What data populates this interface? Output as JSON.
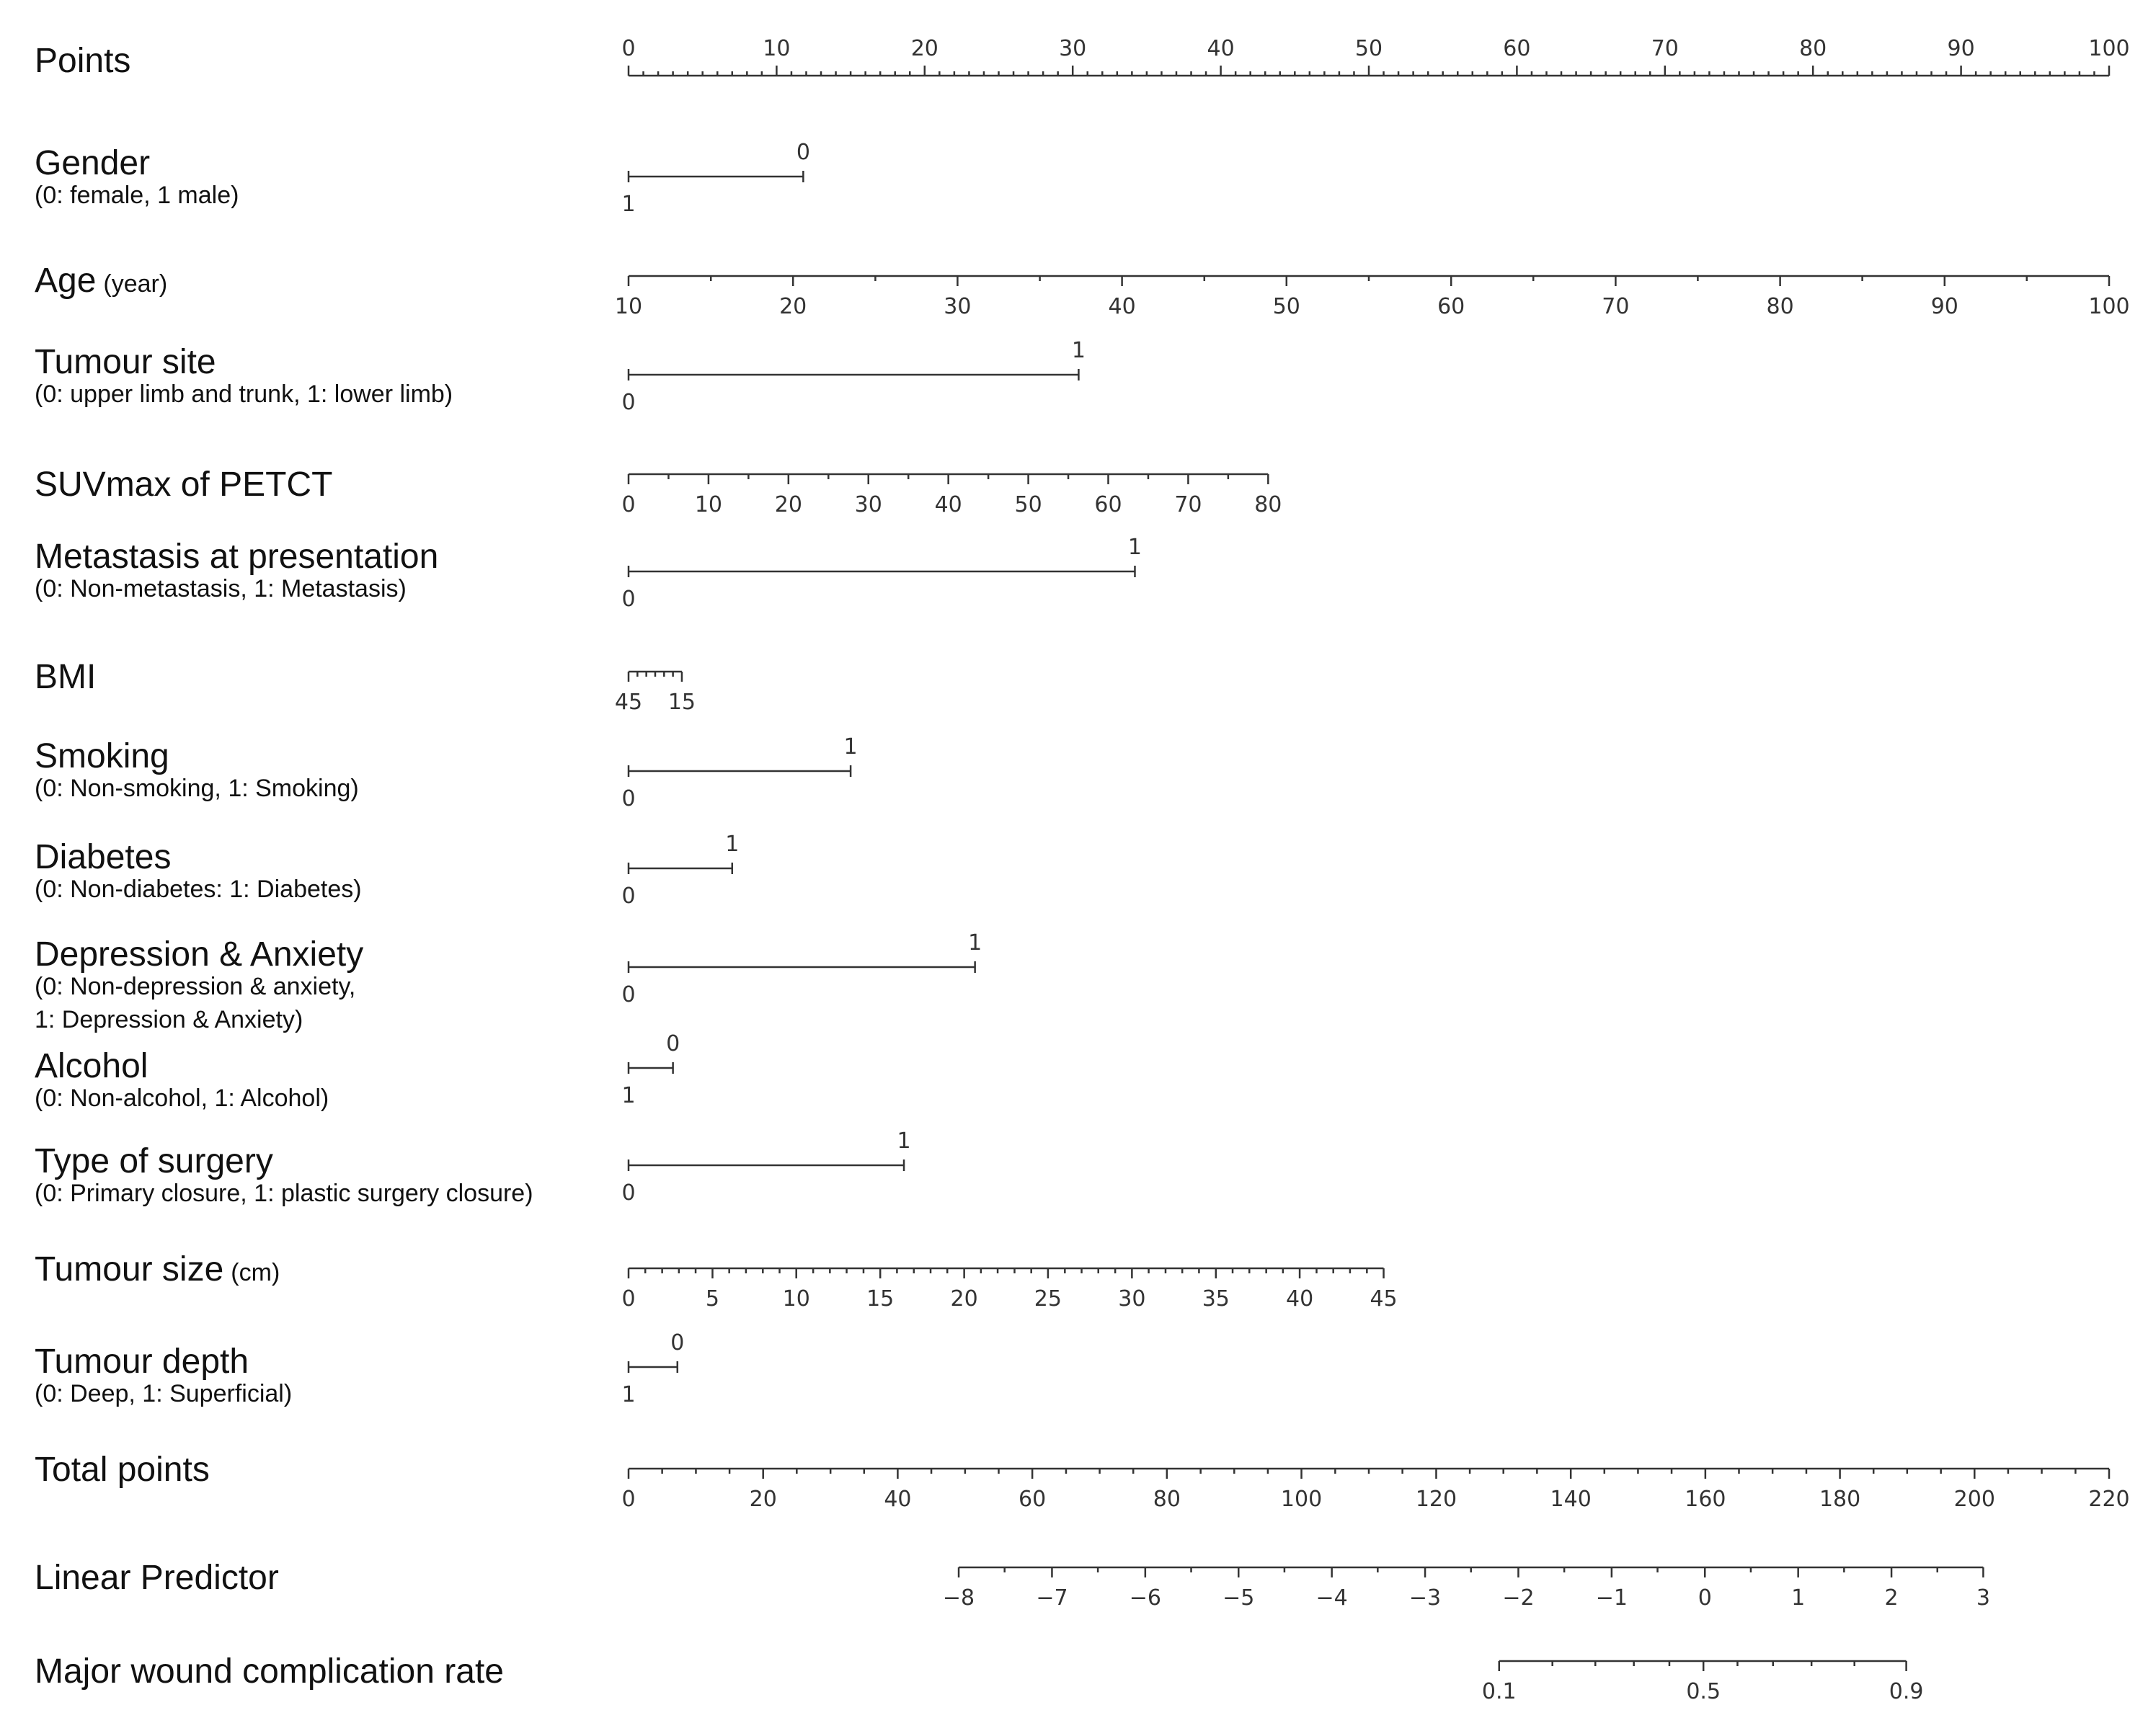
{
  "chart_data": {
    "type": "nomogram",
    "rows": [
      {
        "label": "Points",
        "ticks": [
          {
            "v": 0,
            "l": "0"
          },
          {
            "v": 10,
            "l": "10"
          },
          {
            "v": 20,
            "l": "20"
          },
          {
            "v": 30,
            "l": "30"
          },
          {
            "v": 40,
            "l": "40"
          },
          {
            "v": 50,
            "l": "50"
          },
          {
            "v": 60,
            "l": "60"
          },
          {
            "v": 70,
            "l": "70"
          },
          {
            "v": 80,
            "l": "80"
          },
          {
            "v": 90,
            "l": "90"
          },
          {
            "v": 100,
            "l": "100"
          }
        ],
        "minor": [
          1,
          2,
          3,
          4,
          5,
          6,
          7,
          8,
          9,
          11,
          12,
          13,
          14,
          15,
          16,
          17,
          18,
          19,
          21,
          22,
          23,
          24,
          25,
          26,
          27,
          28,
          29,
          31,
          32,
          33,
          34,
          35,
          36,
          37,
          38,
          39,
          41,
          42,
          43,
          44,
          45,
          46,
          47,
          48,
          49,
          51,
          52,
          53,
          54,
          55,
          56,
          57,
          58,
          59,
          61,
          62,
          63,
          64,
          65,
          66,
          67,
          68,
          69,
          71,
          72,
          73,
          74,
          75,
          76,
          77,
          78,
          79,
          81,
          82,
          83,
          84,
          85,
          86,
          87,
          88,
          89,
          91,
          92,
          93,
          94,
          95,
          96,
          97,
          98,
          99
        ],
        "labelsAbove": true
      },
      {
        "label": "Gender",
        "sublabel": "(0: female, 1 male)",
        "binary": true,
        "ticks": [
          {
            "v": 0,
            "l": "1",
            "pos": "below"
          },
          {
            "v": 11.8,
            "l": "0",
            "pos": "above"
          }
        ]
      },
      {
        "label": "Age",
        "unit": "(year)",
        "ticks": [
          {
            "v": 0,
            "l": "10"
          },
          {
            "v": 11.11,
            "l": "20"
          },
          {
            "v": 22.22,
            "l": "30"
          },
          {
            "v": 33.33,
            "l": "40"
          },
          {
            "v": 44.44,
            "l": "50"
          },
          {
            "v": 55.56,
            "l": "60"
          },
          {
            "v": 66.67,
            "l": "70"
          },
          {
            "v": 77.78,
            "l": "80"
          },
          {
            "v": 88.89,
            "l": "90"
          },
          {
            "v": 100,
            "l": "100"
          }
        ],
        "minor": [
          5.56,
          16.67,
          27.78,
          38.89,
          50,
          61.11,
          72.22,
          83.33,
          94.44
        ]
      },
      {
        "label": "Tumour site",
        "sublabel": "(0: upper limb and trunk, 1: lower limb)",
        "binary": true,
        "ticks": [
          {
            "v": 0,
            "l": "0",
            "pos": "below"
          },
          {
            "v": 30.4,
            "l": "1",
            "pos": "above"
          }
        ]
      },
      {
        "label": "SUVmax of PETCT",
        "ticks": [
          {
            "v": 0,
            "l": "0"
          },
          {
            "v": 5.4,
            "l": "10"
          },
          {
            "v": 10.8,
            "l": "20"
          },
          {
            "v": 16.2,
            "l": "30"
          },
          {
            "v": 21.6,
            "l": "40"
          },
          {
            "v": 27,
            "l": "50"
          },
          {
            "v": 32.4,
            "l": "60"
          },
          {
            "v": 37.8,
            "l": "70"
          },
          {
            "v": 43.2,
            "l": "80"
          }
        ],
        "minor": [
          2.7,
          8.1,
          13.5,
          18.9,
          24.3,
          29.7,
          35.1,
          40.5
        ]
      },
      {
        "label": "Metastasis at presentation",
        "sublabel": "(0: Non-metastasis, 1: Metastasis)",
        "binary": true,
        "ticks": [
          {
            "v": 0,
            "l": "0",
            "pos": "below"
          },
          {
            "v": 34.2,
            "l": "1",
            "pos": "above"
          }
        ]
      },
      {
        "label": "BMI",
        "ticks": [
          {
            "v": 0,
            "l": "45"
          },
          {
            "v": 3.6,
            "l": "15"
          }
        ],
        "minor": [
          0.6,
          1.2,
          1.8,
          2.4,
          3.0
        ]
      },
      {
        "label": "Smoking",
        "sublabel": "(0: Non-smoking, 1: Smoking)",
        "binary": true,
        "ticks": [
          {
            "v": 0,
            "l": "0",
            "pos": "below"
          },
          {
            "v": 15.0,
            "l": "1",
            "pos": "above"
          }
        ]
      },
      {
        "label": "Diabetes",
        "sublabel": "(0: Non-diabetes: 1: Diabetes)",
        "binary": true,
        "ticks": [
          {
            "v": 0,
            "l": "0",
            "pos": "below"
          },
          {
            "v": 7.0,
            "l": "1",
            "pos": "above"
          }
        ]
      },
      {
        "label": "Depression & Anxiety",
        "sublabel": "(0: Non-depression & anxiety,",
        "sublabel2": "1: Depression & Anxiety)",
        "binary": true,
        "ticks": [
          {
            "v": 0,
            "l": "0",
            "pos": "below"
          },
          {
            "v": 23.4,
            "l": "1",
            "pos": "above"
          }
        ]
      },
      {
        "label": "Alcohol",
        "sublabel": "(0: Non-alcohol, 1: Alcohol)",
        "binary": true,
        "ticks": [
          {
            "v": 0,
            "l": "1",
            "pos": "below"
          },
          {
            "v": 3.0,
            "l": "0",
            "pos": "above"
          }
        ]
      },
      {
        "label": "Type of surgery",
        "sublabel": "(0: Primary closure, 1: plastic surgery closure)",
        "binary": true,
        "ticks": [
          {
            "v": 0,
            "l": "0",
            "pos": "below"
          },
          {
            "v": 18.6,
            "l": "1",
            "pos": "above"
          }
        ]
      },
      {
        "label": "Tumour size",
        "unit": "(cm)",
        "ticks": [
          {
            "v": 0,
            "l": "0"
          },
          {
            "v": 5.67,
            "l": "5"
          },
          {
            "v": 11.33,
            "l": "10"
          },
          {
            "v": 17,
            "l": "15"
          },
          {
            "v": 22.67,
            "l": "20"
          },
          {
            "v": 28.33,
            "l": "25"
          },
          {
            "v": 34,
            "l": "30"
          },
          {
            "v": 39.67,
            "l": "35"
          },
          {
            "v": 45.33,
            "l": "40"
          },
          {
            "v": 51,
            "l": "45"
          }
        ],
        "minor": [
          1.13,
          2.27,
          3.4,
          4.53,
          6.8,
          7.93,
          9.07,
          10.2,
          12.47,
          13.6,
          14.73,
          15.87,
          18.13,
          19.27,
          20.4,
          21.53,
          23.8,
          24.93,
          26.07,
          27.2,
          29.47,
          30.6,
          31.73,
          32.87,
          35.13,
          36.27,
          37.4,
          38.53,
          40.8,
          41.93,
          43.07,
          44.2,
          46.47,
          47.6,
          48.73,
          49.87
        ]
      },
      {
        "label": "Tumour depth",
        "sublabel": "(0: Deep, 1: Superficial)",
        "binary": true,
        "ticks": [
          {
            "v": 0,
            "l": "1",
            "pos": "below"
          },
          {
            "v": 3.3,
            "l": "0",
            "pos": "above"
          }
        ]
      },
      {
        "label": "Total points",
        "ticks": [
          {
            "v": 0,
            "l": "0"
          },
          {
            "v": 9.09,
            "l": "20"
          },
          {
            "v": 18.18,
            "l": "40"
          },
          {
            "v": 27.27,
            "l": "60"
          },
          {
            "v": 36.36,
            "l": "80"
          },
          {
            "v": 45.45,
            "l": "100"
          },
          {
            "v": 54.55,
            "l": "120"
          },
          {
            "v": 63.64,
            "l": "140"
          },
          {
            "v": 72.73,
            "l": "160"
          },
          {
            "v": 81.82,
            "l": "180"
          },
          {
            "v": 90.91,
            "l": "200"
          },
          {
            "v": 100,
            "l": "220"
          }
        ],
        "minor": [
          2.27,
          4.55,
          6.82,
          11.36,
          13.64,
          15.91,
          20.45,
          22.73,
          25,
          29.55,
          31.82,
          34.09,
          38.64,
          40.91,
          43.18,
          47.73,
          50,
          52.27,
          56.82,
          59.09,
          61.36,
          65.91,
          68.18,
          70.45,
          75,
          77.27,
          79.55,
          84.09,
          86.36,
          88.64,
          93.18,
          95.45,
          97.73
        ]
      },
      {
        "label": "Linear Predictor",
        "axisFrom": 22.3,
        "axisTo": 91.5,
        "ticks": [
          {
            "v": 22.3,
            "l": "−8"
          },
          {
            "v": 28.6,
            "l": "−7"
          },
          {
            "v": 34.9,
            "l": "−6"
          },
          {
            "v": 41.2,
            "l": "−5"
          },
          {
            "v": 47.5,
            "l": "−4"
          },
          {
            "v": 53.8,
            "l": "−3"
          },
          {
            "v": 60.1,
            "l": "−2"
          },
          {
            "v": 66.4,
            "l": "−1"
          },
          {
            "v": 72.7,
            "l": "0"
          },
          {
            "v": 79.0,
            "l": "1"
          },
          {
            "v": 85.3,
            "l": "2"
          },
          {
            "v": 91.5,
            "l": "3"
          }
        ],
        "minor": [
          25.4,
          31.7,
          38.0,
          44.3,
          50.6,
          56.9,
          63.2,
          69.5,
          75.8,
          82.1,
          88.4
        ]
      },
      {
        "label": "Major wound complication rate",
        "axisFrom": 58.8,
        "axisTo": 86.3,
        "ticks": [
          {
            "v": 58.8,
            "l": "0.1"
          },
          {
            "v": 72.6,
            "l": "0.5"
          },
          {
            "v": 86.3,
            "l": "0.9"
          }
        ],
        "minor": [
          62.4,
          65.3,
          67.9,
          70.3,
          74.9,
          77.3,
          79.9,
          82.8
        ]
      }
    ]
  }
}
